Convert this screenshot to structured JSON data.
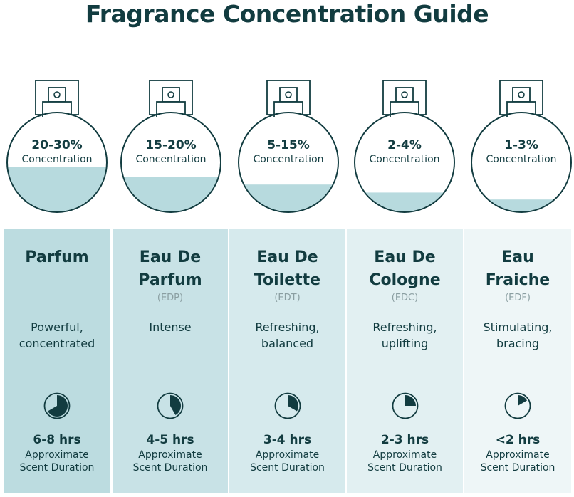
{
  "title": "Fragrance Concentration Guide",
  "colors": {
    "text": "#123c40",
    "liquid": "#b7dade",
    "panel_left": "#bcdce0",
    "panel_right": "#eef6f7"
  },
  "types": [
    {
      "concentration": "20-30%",
      "concentration_label": "Concentration",
      "fill_level": 0.4,
      "name_line1": "Parfum",
      "name_line2": "",
      "abbr": "",
      "desc_line1": "Powerful,",
      "desc_line2": "concentrated",
      "duration": "6-8 hrs",
      "duration_label1": "Approximate",
      "duration_label2": "Scent Duration",
      "clock_fraction": 0.667
    },
    {
      "concentration": "15-20%",
      "concentration_label": "Concentration",
      "fill_level": 0.3,
      "name_line1": "Eau De",
      "name_line2": "Parfum",
      "abbr": "(EDP)",
      "desc_line1": "Intense",
      "desc_line2": "",
      "duration": "4-5 hrs",
      "duration_label1": "Approximate",
      "duration_label2": "Scent Duration",
      "clock_fraction": 0.417
    },
    {
      "concentration": "5-15%",
      "concentration_label": "Concentration",
      "fill_level": 0.22,
      "name_line1": "Eau De",
      "name_line2": "Toilette",
      "abbr": "(EDT)",
      "desc_line1": "Refreshing,",
      "desc_line2": "balanced",
      "duration": "3-4 hrs",
      "duration_label1": "Approximate",
      "duration_label2": "Scent Duration",
      "clock_fraction": 0.333
    },
    {
      "concentration": "2-4%",
      "concentration_label": "Concentration",
      "fill_level": 0.14,
      "name_line1": "Eau De",
      "name_line2": "Cologne",
      "abbr": "(EDC)",
      "desc_line1": "Refreshing,",
      "desc_line2": "uplifting",
      "duration": "2-3 hrs",
      "duration_label1": "Approximate",
      "duration_label2": "Scent Duration",
      "clock_fraction": 0.25
    },
    {
      "concentration": "1-3%",
      "concentration_label": "Concentration",
      "fill_level": 0.07,
      "name_line1": "Eau",
      "name_line2": "Fraiche",
      "abbr": "(EDF)",
      "desc_line1": "Stimulating,",
      "desc_line2": "bracing",
      "duration": "<2 hrs",
      "duration_label1": "Approximate",
      "duration_label2": "Scent Duration",
      "clock_fraction": 0.167
    }
  ]
}
